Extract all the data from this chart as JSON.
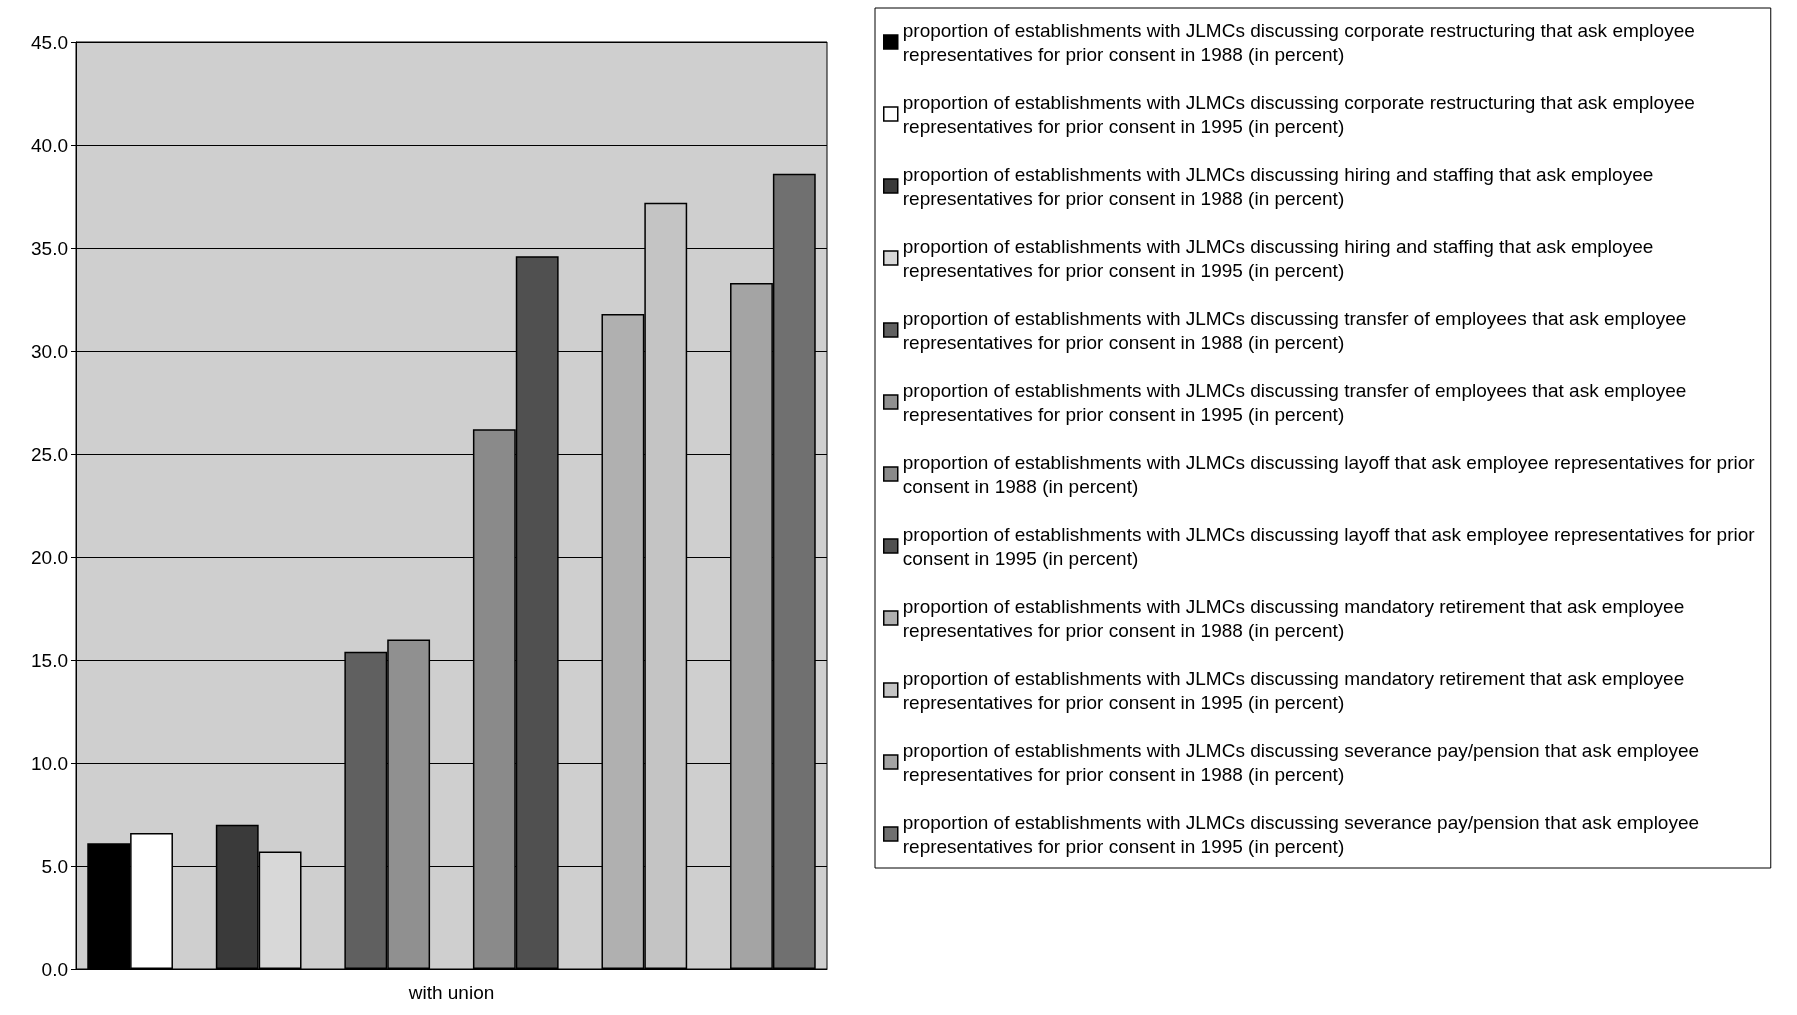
{
  "chart_data": {
    "type": "bar",
    "categories": [
      "with union"
    ],
    "ylim": [
      0,
      45
    ],
    "yticks": [
      {
        "value": 0,
        "label": "0.0"
      },
      {
        "value": 5,
        "label": "5.0"
      },
      {
        "value": 10,
        "label": "10.0"
      },
      {
        "value": 15,
        "label": "15.0"
      },
      {
        "value": 20,
        "label": "20.0"
      },
      {
        "value": 25,
        "label": "25.0"
      },
      {
        "value": 30,
        "label": "30.0"
      },
      {
        "value": 35,
        "label": "35.0"
      },
      {
        "value": 40,
        "label": "40.0"
      },
      {
        "value": 45,
        "label": "45.0"
      }
    ],
    "grid": "y",
    "legend": "right",
    "series": [
      {
        "name": "proportion of establishments with JLMCs discussing corporate restructuring that ask employee representatives for prior consent in 1988 (in percent)",
        "color": "#000000",
        "values": [
          6.1
        ]
      },
      {
        "name": "proportion of establishments with JLMCs discussing corporate restructuring that ask employee representatives for prior consent in 1995 (in percent)",
        "color": "#ffffff",
        "values": [
          6.6
        ]
      },
      {
        "values": [
          null
        ]
      },
      {
        "name": "proportion of establishments with JLMCs discussing hiring and staffing that ask employee representatives for prior consent in 1988 (in percent)",
        "color": "#3a3a3a",
        "values": [
          7.0
        ]
      },
      {
        "name": "proportion of establishments with JLMCs discussing hiring and staffing that ask employee representatives for prior consent in 1995 (in percent)",
        "color": "#d8d8d8",
        "values": [
          5.7
        ]
      },
      {
        "values": [
          null
        ]
      },
      {
        "name": "proportion of establishments with JLMCs discussing transfer of employees that ask employee representatives for prior consent in 1988 (in percent)",
        "color": "#606060",
        "values": [
          15.4
        ]
      },
      {
        "name": "proportion of establishments with JLMCs discussing transfer of employees that ask employee representatives for prior consent in 1995 (in percent)",
        "color": "#909090",
        "values": [
          16.0
        ]
      },
      {
        "values": [
          null
        ]
      },
      {
        "name": "proportion of establishments with JLMCs discussing layoff that ask employee representatives for prior consent in 1988 (in percent)",
        "color": "#8a8a8a",
        "values": [
          26.2
        ]
      },
      {
        "name": "proportion of establishments with JLMCs discussing layoff that ask employee representatives for prior consent in 1995 (in percent)",
        "color": "#505050",
        "values": [
          34.6
        ]
      },
      {
        "values": [
          null
        ]
      },
      {
        "name": "proportion of establishments with JLMCs discussing mandatory retirement that ask employee representatives for prior consent in 1988 (in percent)",
        "color": "#b0b0b0",
        "values": [
          31.8
        ]
      },
      {
        "name": "proportion of establishments with JLMCs discussing mandatory retirement that ask employee representatives for prior consent in 1995 (in percent)",
        "color": "#c4c4c4",
        "values": [
          37.2
        ]
      },
      {
        "values": [
          null
        ]
      },
      {
        "name": "proportion of establishments with JLMCs discussing severance pay/pension that ask employee representatives for prior consent in 1988 (in percent)",
        "color": "#a4a4a4",
        "values": [
          33.3
        ]
      },
      {
        "name": "proportion of establishments with JLMCs discussing severance pay/pension that ask employee representatives for prior consent in 1995 (in percent)",
        "color": "#707070",
        "values": [
          38.6
        ]
      }
    ]
  }
}
